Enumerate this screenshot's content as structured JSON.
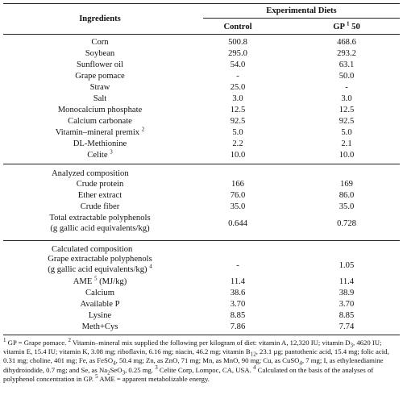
{
  "header": {
    "ingredients": "Ingredients",
    "experimental_diets": "Experimental Diets",
    "control": "Control",
    "gp_prefix": "GP",
    "gp_sup": "1",
    "gp_suffix": "50"
  },
  "ingredients": [
    {
      "name": "Corn",
      "control": "500.8",
      "gp": "468.6"
    },
    {
      "name": "Soybean",
      "control": "295.0",
      "gp": "293.2"
    },
    {
      "name": "Sunflower oil",
      "control": "54.0",
      "gp": "63.1"
    },
    {
      "name": "Grape pomace",
      "control": "-",
      "gp": "50.0"
    },
    {
      "name": "Straw",
      "control": "25.0",
      "gp": "-"
    },
    {
      "name": "Salt",
      "control": "3.0",
      "gp": "3.0"
    },
    {
      "name": "Monocalcium phosphate",
      "control": "12.5",
      "gp": "12.5"
    },
    {
      "name": "Calcium carbonate",
      "control": "92.5",
      "gp": "92.5"
    },
    {
      "name": "Vitamin–mineral premix",
      "sup": "2",
      "control": "5.0",
      "gp": "5.0"
    },
    {
      "name": "DL-Methionine",
      "control": "2.2",
      "gp": "2.1"
    },
    {
      "name": "Celite",
      "sup": "3",
      "control": "10.0",
      "gp": "10.0"
    }
  ],
  "analyzed": {
    "heading": "Analyzed composition",
    "rows": [
      {
        "name": "Crude protein",
        "control": "166",
        "gp": "169"
      },
      {
        "name": "Ether extract",
        "control": "76.0",
        "gp": "86.0"
      },
      {
        "name": "Crude fiber",
        "control": "35.0",
        "gp": "35.0"
      }
    ],
    "polyphenols_line1": "Total extractable polyphenols",
    "polyphenols_line2": "(g gallic acid equivalents/kg)",
    "polyphenols_control": "0.644",
    "polyphenols_gp": "0.728"
  },
  "calculated": {
    "heading": "Calculated composition",
    "grape_line1": "Grape extractable polyphenols",
    "grape_line2": "(g gallic acid equivalents/kg)",
    "grape_sup": "4",
    "grape_control": "-",
    "grape_gp": "1.05",
    "ame_label": "AME",
    "ame_sup": "5",
    "ame_unit": "(MJ/kg)",
    "ame_control": "11.4",
    "ame_gp": "11.4",
    "rows": [
      {
        "name": "Calcium",
        "control": "38.6",
        "gp": "38.9"
      },
      {
        "name": "Available P",
        "control": "3.70",
        "gp": "3.70"
      },
      {
        "name": "Lysine",
        "control": "8.85",
        "gp": "8.85"
      },
      {
        "name": "Meth+Cys",
        "control": "7.86",
        "gp": "7.74"
      }
    ]
  },
  "footnotes": {
    "n1_mark": "1",
    "n1_text": "GP = Grape pomace.",
    "n2_mark": "2",
    "n2_a": "Vitamin–mineral mix supplied the following per kilogram of diet: vitamin A, 12,320 IU; vitamin D",
    "n2_sub1": "3",
    "n2_b": ", 4620 IU; vitamin E, 15.4 IU; vitamin K, 3.08 mg; riboflavin, 6.16 mg; niacin, 46.2 mg; vitamin B",
    "n2_sub2": "12",
    "n2_c": ", 23.1 µg; pantothenic acid, 15.4 mg; folic acid, 0.31 mg; choline, 401 mg; Fe, as FeSO",
    "n2_sub3": "4",
    "n2_d": ", 50.4 mg; Zn, as ZnO, 71 mg; Mn, as MnO, 90 mg; Cu, as CuSO",
    "n2_sub4": "4",
    "n2_e": ", 7 mg; I, as ethylenediamine dihydroiodide, 0.7 mg; and Se, as Na",
    "n2_sub5": "2",
    "n2_f": "SeO",
    "n2_sub6": "3",
    "n2_g": ", 0.25 mg.",
    "n3_mark": "3",
    "n3_text": "Celite Corp, Lompoc, CA, USA.",
    "n4_mark": "4",
    "n4_text": "Calculated on the basis of the analyses of polyphenol concentration in GP.",
    "n5_mark": "5",
    "n5_text": "AME = apparent metabolizable energy."
  }
}
